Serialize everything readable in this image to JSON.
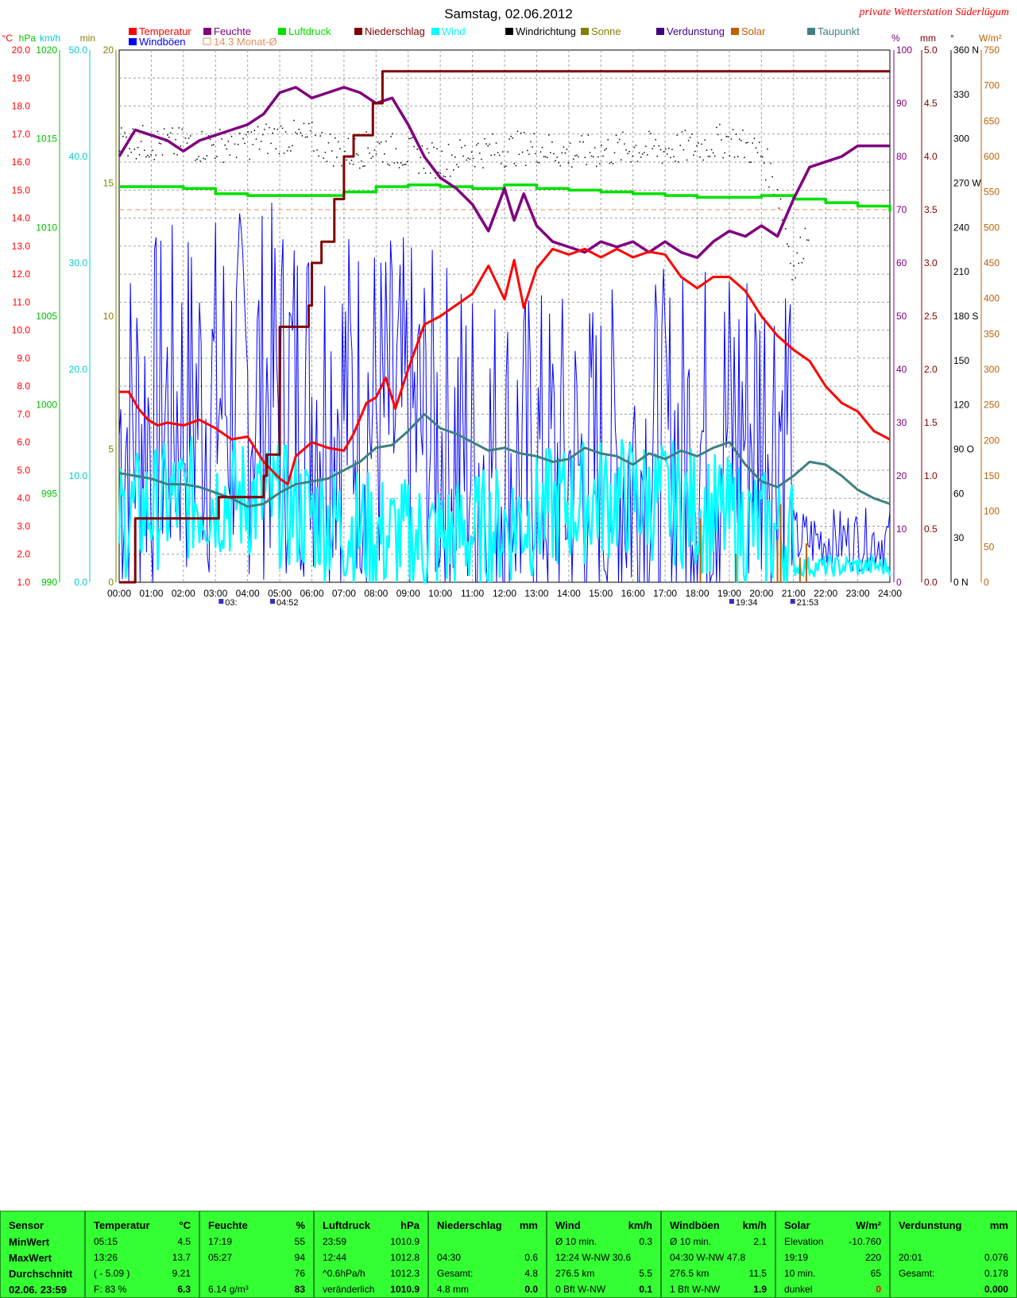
{
  "chart_data": {
    "type": "line",
    "title": "Samstag, 02.06.2012",
    "subtitle": "private Wetterstation Süderlügum",
    "legend_row1": [
      {
        "name": "Temperatur",
        "color": "#ff0000"
      },
      {
        "name": "Feuchte",
        "color": "#800080"
      },
      {
        "name": "Luftdruck",
        "color": "#00e000"
      },
      {
        "name": "Niederschlag",
        "color": "#800000"
      },
      {
        "name": "Wind",
        "color": "#00ffff"
      },
      {
        "name": "Windrichtung",
        "color": "#000000"
      },
      {
        "name": "Sonne",
        "color": "#808000"
      },
      {
        "name": "Verdunstung",
        "color": "#400080"
      },
      {
        "name": "Solar",
        "color": "#c06000"
      },
      {
        "name": "Taupunkt",
        "color": "#408080"
      }
    ],
    "legend_row2": [
      {
        "name": "Windböen",
        "color": "#0000ff"
      },
      {
        "name": "14.3 Monat-Ø",
        "color": "#e09060"
      }
    ],
    "left_axes": [
      {
        "unit": "°C",
        "color": "#ff0000",
        "ticks": [
          "20.0",
          "19.0",
          "18.0",
          "17.0",
          "16.0",
          "15.0",
          "14.0",
          "13.0",
          "12.0",
          "11.0",
          "10.0",
          "9.0",
          "8.0",
          "7.0",
          "6.0",
          "5.0",
          "4.0",
          "3.0",
          "2.0",
          "1.0"
        ]
      },
      {
        "unit": "hPa",
        "color": "#00c000",
        "ticks": [
          "1020",
          "1015",
          "1010",
          "1005",
          "1000",
          "995",
          "990"
        ]
      },
      {
        "unit": "km/h",
        "color": "#00cccc",
        "ticks": [
          "50.0",
          "40.0",
          "30.0",
          "20.0",
          "10.0",
          "0.0"
        ]
      },
      {
        "unit": "min",
        "color": "#808000",
        "ticks": [
          "20",
          "15",
          "10",
          "5",
          "0"
        ]
      }
    ],
    "right_axes": [
      {
        "unit": "%",
        "color": "#800080",
        "ticks": [
          "100",
          "90",
          "80",
          "70",
          "60",
          "50",
          "40",
          "30",
          "20",
          "10",
          "0"
        ]
      },
      {
        "unit": "mm",
        "color": "#800000",
        "ticks": [
          "5.0",
          "4.5",
          "4.0",
          "3.5",
          "3.0",
          "2.5",
          "2.0",
          "1.5",
          "1.0",
          "0.5",
          "0.0"
        ]
      },
      {
        "unit": "°",
        "color": "#000000",
        "ticks": [
          "360 N",
          "330",
          "300",
          "270 W",
          "240",
          "210",
          "180 S",
          "150",
          "120",
          "90 O",
          "60",
          "30",
          "0 N"
        ]
      },
      {
        "unit": "W/m²",
        "color": "#c06000",
        "ticks": [
          "750",
          "700",
          "650",
          "600",
          "550",
          "500",
          "450",
          "400",
          "350",
          "300",
          "250",
          "200",
          "150",
          "100",
          "50",
          "0"
        ]
      }
    ],
    "x_ticks": [
      "00:00",
      "01:00",
      "02:00",
      "03:00",
      "04:00",
      "05:00",
      "06:00",
      "07:00",
      "08:00",
      "09:00",
      "10:00",
      "11:00",
      "12:00",
      "13:00",
      "14:00",
      "15:00",
      "16:00",
      "17:00",
      "18:00",
      "19:00",
      "20:00",
      "21:00",
      "22:00",
      "23:00",
      "24:00"
    ],
    "sun_markers": [
      "03:",
      "04:52",
      "19:34",
      "21:53"
    ],
    "xlim": [
      0,
      24
    ],
    "temperature": {
      "x": [
        0,
        0.3,
        0.6,
        0.9,
        1.2,
        1.5,
        2,
        2.5,
        3,
        3.5,
        4,
        4.5,
        5,
        5.25,
        5.5,
        6,
        6.5,
        7,
        7.3,
        7.7,
        8,
        8.3,
        8.6,
        9,
        9.5,
        10,
        10.5,
        11,
        11.5,
        12,
        12.3,
        12.6,
        13,
        13.5,
        14,
        14.5,
        15,
        15.5,
        16,
        16.5,
        17,
        17.5,
        18,
        18.5,
        19,
        19.5,
        20,
        20.5,
        21,
        21.5,
        22,
        22.5,
        23,
        23.5,
        24
      ],
      "y": [
        7.8,
        7.8,
        7.2,
        6.8,
        6.6,
        6.7,
        6.6,
        6.8,
        6.5,
        6.1,
        6.2,
        5.3,
        4.7,
        4.5,
        5.5,
        6.0,
        5.8,
        5.7,
        6.3,
        7.4,
        7.6,
        8.3,
        7.2,
        8.6,
        10.2,
        10.5,
        10.9,
        11.3,
        12.3,
        11.1,
        12.5,
        10.8,
        12.2,
        12.9,
        12.7,
        12.9,
        12.6,
        12.9,
        12.6,
        12.8,
        12.7,
        11.9,
        11.5,
        11.9,
        11.9,
        11.4,
        10.5,
        9.8,
        9.3,
        8.9,
        8.0,
        7.4,
        7.1,
        6.4,
        6.1
      ]
    },
    "humidity": {
      "x": [
        0,
        0.5,
        1,
        1.5,
        2,
        2.5,
        3,
        3.5,
        4,
        4.5,
        5,
        5.5,
        6,
        6.5,
        7,
        7.5,
        8,
        8.5,
        9,
        9.5,
        10,
        10.5,
        11,
        11.5,
        12,
        12.3,
        12.6,
        13,
        13.5,
        14,
        14.5,
        15,
        15.5,
        16,
        16.5,
        17,
        17.5,
        18,
        18.5,
        19,
        19.5,
        20,
        20.5,
        21,
        21.5,
        22,
        22.5,
        23,
        23.5,
        24
      ],
      "y": [
        80,
        85,
        84,
        83,
        81,
        83,
        84,
        85,
        86,
        88,
        92,
        93,
        91,
        92,
        93,
        92,
        90,
        91,
        86,
        80,
        76,
        74,
        71,
        66,
        74,
        68,
        73,
        67,
        64,
        63,
        62,
        64,
        63,
        64,
        62,
        64,
        62,
        61,
        64,
        66,
        65,
        67,
        65,
        72,
        78,
        79,
        80,
        82,
        82,
        82
      ]
    },
    "pressure": {
      "x": [
        0,
        1,
        2,
        3,
        4,
        5,
        6,
        7,
        8,
        9,
        10,
        11,
        12,
        13,
        14,
        15,
        16,
        17,
        18,
        19,
        20,
        21,
        22,
        23,
        24
      ],
      "y": [
        1012.3,
        1012.3,
        1012.2,
        1011.9,
        1011.8,
        1011.8,
        1011.8,
        1012.0,
        1012.3,
        1012.4,
        1012.3,
        1012.2,
        1012.4,
        1012.2,
        1012.1,
        1012.0,
        1011.9,
        1011.8,
        1011.7,
        1011.7,
        1011.8,
        1011.6,
        1011.4,
        1011.2,
        1010.9
      ]
    },
    "dewpoint": {
      "x": [
        0,
        0.5,
        1,
        1.5,
        2,
        2.5,
        3,
        3.5,
        4,
        4.5,
        5,
        5.5,
        6,
        6.5,
        7,
        7.5,
        8,
        8.5,
        9,
        9.5,
        10,
        10.5,
        11,
        11.5,
        12,
        12.5,
        13,
        13.5,
        14,
        14.5,
        15,
        15.5,
        16,
        16.5,
        17,
        17.5,
        18,
        18.5,
        19,
        19.5,
        20,
        20.5,
        21,
        21.5,
        22,
        22.5,
        23,
        23.5,
        24
      ],
      "y": [
        4.9,
        4.8,
        4.7,
        4.5,
        4.5,
        4.4,
        4.2,
        4.0,
        3.7,
        3.8,
        4.2,
        4.5,
        4.6,
        4.7,
        5.0,
        5.3,
        5.8,
        5.9,
        6.4,
        7.0,
        6.5,
        6.3,
        6.0,
        5.7,
        5.8,
        5.6,
        5.5,
        5.3,
        5.4,
        5.8,
        5.6,
        5.5,
        5.2,
        5.6,
        5.4,
        5.7,
        5.5,
        5.8,
        6.0,
        5.2,
        4.6,
        4.4,
        4.8,
        5.3,
        5.2,
        4.8,
        4.3,
        4.0,
        3.8
      ]
    },
    "precipitation_mm": {
      "x": [
        0,
        0.4,
        0.5,
        3,
        3.1,
        4.4,
        4.5,
        4.6,
        5,
        5.1,
        5.9,
        6,
        6.3,
        6.4,
        6.7,
        7.0,
        7.3,
        7.6,
        7.9,
        8.1,
        8.2,
        8.5,
        24
      ],
      "y": [
        0.0,
        0.0,
        0.6,
        0.6,
        0.8,
        0.8,
        1.0,
        1.2,
        2.4,
        2.4,
        2.6,
        3.0,
        3.2,
        3.2,
        3.6,
        4.0,
        4.2,
        4.2,
        4.5,
        4.5,
        4.8,
        4.8,
        4.8
      ]
    },
    "wind_direction_deg": {
      "x": [
        0,
        1,
        2,
        3,
        4,
        5,
        6,
        7,
        8,
        9,
        10,
        11,
        12,
        13,
        14,
        15,
        16,
        17,
        18,
        19,
        20,
        20.5,
        21,
        22,
        23,
        24
      ],
      "y": [
        300,
        297,
        296,
        296,
        298,
        302,
        300,
        290,
        295,
        290,
        285,
        292,
        293,
        295,
        290,
        292,
        294,
        293,
        295,
        300,
        290,
        265,
        210,
        280,
        300,
        300
      ]
    },
    "months_avg_temp": 14.3,
    "ylim_temp": [
      1.0,
      20.0
    ],
    "ylim_pressure": [
      990,
      1020
    ],
    "ylim_wind": [
      0,
      50
    ],
    "ylim_humidity": [
      0,
      100
    ],
    "ylim_precip": [
      0,
      5
    ],
    "ylim_dir": [
      0,
      360
    ],
    "ylim_solar": [
      0,
      750
    ]
  },
  "table": {
    "sensor": {
      "header": "Sensor",
      "rows": [
        "MinWert",
        "MaxWert",
        "Durchschnitt",
        "02.06. 23:59"
      ]
    },
    "temperatur": {
      "header": "Temperatur",
      "unit": "°C",
      "rows": [
        [
          "05:15",
          "4.5"
        ],
        [
          "13:26",
          "13.7"
        ],
        [
          "( - 5.09 )",
          "9.21"
        ],
        [
          "F: 83 %",
          "6.3"
        ]
      ]
    },
    "feuchte": {
      "header": "Feuchte",
      "unit": "%",
      "rows": [
        [
          "17:19",
          "55"
        ],
        [
          "05:27",
          "94"
        ],
        [
          "",
          "76"
        ],
        [
          "6.14 g/m³",
          "83"
        ]
      ]
    },
    "luftdruck": {
      "header": "Luftdruck",
      "unit": "hPa",
      "rows": [
        [
          "23:59",
          "1010.9"
        ],
        [
          "12:44",
          "1012.8"
        ],
        [
          "^0.6hPa/h",
          "1012.3"
        ],
        [
          "veränderlich",
          "1010.9"
        ]
      ]
    },
    "niederschlag": {
      "header": "Niederschlag",
      "unit": "mm",
      "rows": [
        [
          "",
          ""
        ],
        [
          "04:30",
          "0.6"
        ],
        [
          "Gesamt:",
          "4.8"
        ],
        [
          "4.8 mm",
          "0.0"
        ]
      ]
    },
    "wind": {
      "header": "Wind",
      "unit": "km/h",
      "rows": [
        [
          "Ø 10 min.",
          "0.3"
        ],
        [
          "12:24   W-NW 30.6",
          ""
        ],
        [
          "276.5 km",
          "5.5"
        ],
        [
          "0 Bft W-NW",
          "0.1"
        ]
      ]
    },
    "windboeen": {
      "header": "Windböen",
      "unit": "km/h",
      "rows": [
        [
          "Ø 10 min.",
          "2.1"
        ],
        [
          "04:30   W-NW 47.8",
          ""
        ],
        [
          "276.5 km",
          "11.5"
        ],
        [
          "1 Bft W-NW",
          "1.9"
        ]
      ]
    },
    "solar": {
      "header": "Solar",
      "unit": "W/m²",
      "rows": [
        [
          "Elevation",
          "-10.760"
        ],
        [
          "19:19",
          "220"
        ],
        [
          "10 min.",
          "65"
        ],
        [
          "dunkel",
          "0"
        ]
      ]
    },
    "verdunstung": {
      "header": "Verdunstung",
      "unit": "mm",
      "rows": [
        [
          "",
          ""
        ],
        [
          "20:01",
          "0.076"
        ],
        [
          "Gesamt:",
          "0.178"
        ],
        [
          "",
          "0.000"
        ]
      ]
    }
  }
}
